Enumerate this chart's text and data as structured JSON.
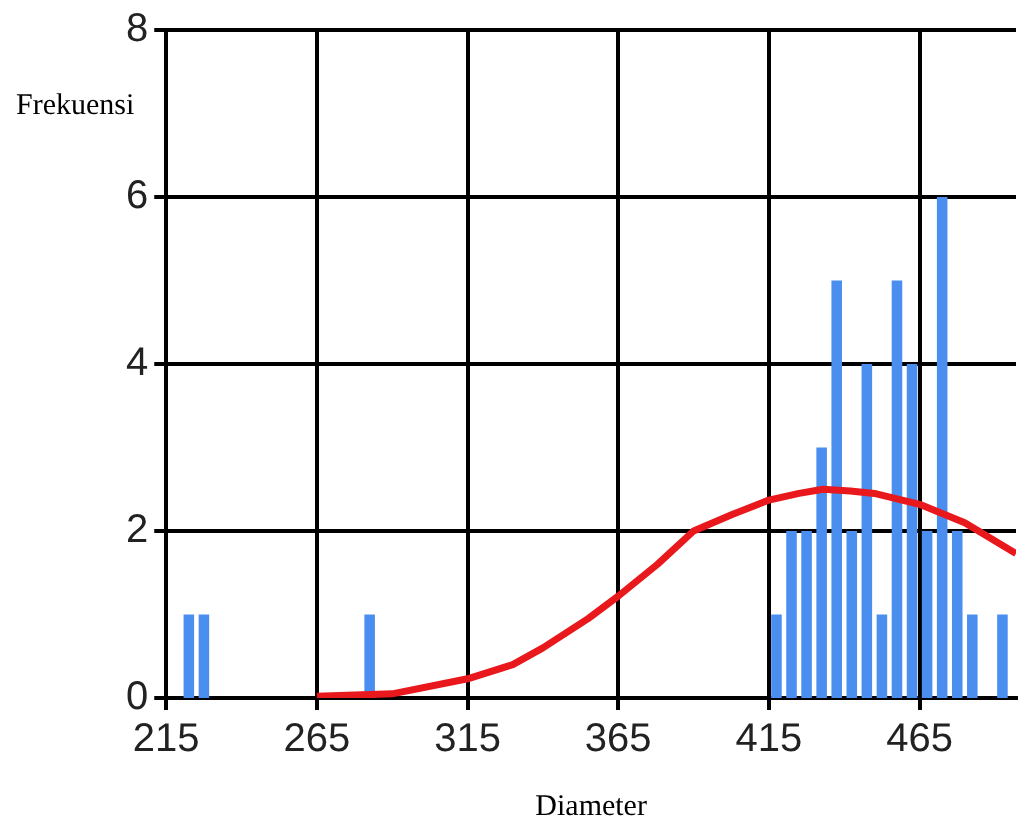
{
  "chart_data": {
    "type": "histogram",
    "xlabel": "Diameter",
    "ylabel": "Frekuensi",
    "bins": [
      220,
      225,
      230,
      280,
      285,
      415,
      420,
      425,
      430,
      435,
      440,
      445,
      450,
      455,
      460,
      465,
      470,
      475,
      480,
      485,
      490,
      495
    ],
    "series": [
      {
        "color": "#4a8ef0",
        "values": [
          1,
          1,
          0,
          1,
          0,
          1,
          2,
          2,
          3,
          5,
          2,
          4,
          1,
          5,
          4,
          2,
          6,
          2,
          1,
          0,
          1
        ]
      },
      {
        "type": "line",
        "color": "#e8181c",
        "x": [
          265,
          290,
          315,
          330,
          340,
          355,
          365,
          378,
          390,
          403,
          415,
          425,
          433,
          442,
          450,
          465,
          480,
          497
        ],
        "values": [
          0.02,
          0.05,
          0.23,
          0.4,
          0.6,
          0.95,
          1.22,
          1.6,
          2.0,
          2.2,
          2.37,
          2.45,
          2.5,
          2.48,
          2.45,
          2.32,
          2.1,
          1.73
        ]
      }
    ],
    "xlim": [
      215,
      497
    ],
    "xticks": [
      215,
      265,
      315,
      365,
      415,
      465
    ],
    "ylim": [
      0,
      8
    ],
    "yticks": [
      0,
      2,
      4,
      6,
      8
    ],
    "grid": true,
    "marker": "none",
    "line_style": "solid"
  }
}
